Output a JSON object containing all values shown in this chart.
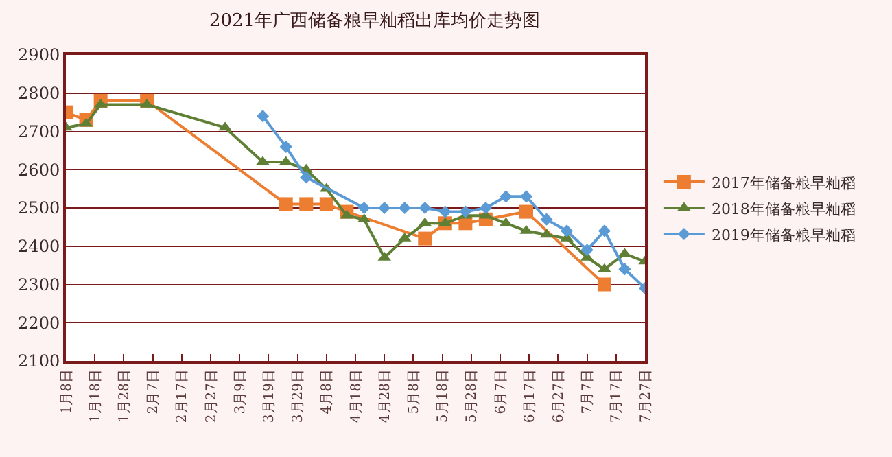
{
  "chart_data": {
    "type": "line",
    "title": "2021年广西储备粮早籼稻出库均价走势图",
    "xlim": [
      "--01-08",
      "--07-27"
    ],
    "xticks": [
      {
        "value": "--01-08",
        "label": "1月8日"
      },
      {
        "value": "--01-18",
        "label": "1月18日"
      },
      {
        "value": "--01-28",
        "label": "1月28日"
      },
      {
        "value": "--02-07",
        "label": "2月7日"
      },
      {
        "value": "--02-17",
        "label": "2月17日"
      },
      {
        "value": "--02-27",
        "label": "2月27日"
      },
      {
        "value": "--03-09",
        "label": "3月9日"
      },
      {
        "value": "--03-19",
        "label": "3月19日"
      },
      {
        "value": "--03-29",
        "label": "3月29日"
      },
      {
        "value": "--04-08",
        "label": "4月8日"
      },
      {
        "value": "--04-18",
        "label": "4月18日"
      },
      {
        "value": "--04-28",
        "label": "4月28日"
      },
      {
        "value": "--05-08",
        "label": "5月8日"
      },
      {
        "value": "--05-18",
        "label": "5月18日"
      },
      {
        "value": "--05-28",
        "label": "5月28日"
      },
      {
        "value": "--06-07",
        "label": "6月7日"
      },
      {
        "value": "--06-17",
        "label": "6月17日"
      },
      {
        "value": "--06-27",
        "label": "6月27日"
      },
      {
        "value": "--07-07",
        "label": "7月7日"
      },
      {
        "value": "--07-17",
        "label": "7月17日"
      },
      {
        "value": "--07-27",
        "label": "7月27日"
      }
    ],
    "ylim": [
      2100,
      2900
    ],
    "yticks": [
      2100,
      2200,
      2300,
      2400,
      2500,
      2600,
      2700,
      2800,
      2900
    ],
    "grid": "y",
    "legend": "right",
    "series": [
      {
        "name": "2017年储备粮早籼稻",
        "color": "#ed7d31",
        "marker": "square",
        "x": [
          "--01-08",
          "--01-15",
          "--01-20",
          "--02-05",
          "--03-25",
          "--04-01",
          "--04-08",
          "--04-15",
          "--05-12",
          "--05-19",
          "--05-26",
          "--06-02",
          "--06-16",
          "--07-13"
        ],
        "values": [
          2750,
          2730,
          2780,
          2780,
          2510,
          2510,
          2510,
          2490,
          2420,
          2460,
          2460,
          2470,
          2490,
          2300
        ]
      },
      {
        "name": "2018年储备粮早籼稻",
        "color": "#5e7f34",
        "marker": "triangle",
        "x": [
          "--01-08",
          "--01-15",
          "--01-20",
          "--02-05",
          "--03-04",
          "--03-17",
          "--03-25",
          "--04-01",
          "--04-08",
          "--04-15",
          "--04-21",
          "--04-28",
          "--05-05",
          "--05-12",
          "--05-19",
          "--05-26",
          "--06-02",
          "--06-09",
          "--06-16",
          "--06-23",
          "--06-30",
          "--07-07",
          "--07-13",
          "--07-20",
          "--07-27"
        ],
        "values": [
          2710,
          2720,
          2770,
          2770,
          2710,
          2620,
          2620,
          2600,
          2550,
          2480,
          2470,
          2370,
          2420,
          2460,
          2460,
          2480,
          2480,
          2460,
          2440,
          2430,
          2420,
          2370,
          2340,
          2380,
          2360
        ]
      },
      {
        "name": "2019年储备粮早籼稻",
        "color": "#5b9bd5",
        "marker": "diamond",
        "x": [
          "--03-17",
          "--03-25",
          "--04-01",
          "--04-21",
          "--04-28",
          "--05-05",
          "--05-12",
          "--05-19",
          "--05-26",
          "--06-02",
          "--06-09",
          "--06-16",
          "--06-23",
          "--06-30",
          "--07-07",
          "--07-13",
          "--07-20",
          "--07-27"
        ],
        "values": [
          2740,
          2660,
          2580,
          2500,
          2500,
          2500,
          2500,
          2490,
          2490,
          2500,
          2530,
          2530,
          2470,
          2440,
          2390,
          2440,
          2340,
          2290
        ]
      }
    ]
  }
}
